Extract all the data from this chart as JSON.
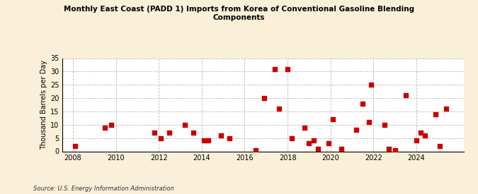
{
  "title": "Monthly East Coast (PADD 1) Imports from Korea of Conventional Gasoline Blending\nComponents",
  "ylabel": "Thousand Barrels per Day",
  "source": "Source: U.S. Energy Information Administration",
  "background_color": "#faefd8",
  "plot_background_color": "#ffffff",
  "marker_color": "#cc0000",
  "marker_size": 16,
  "xlim": [
    2007.5,
    2026.2
  ],
  "ylim": [
    0,
    35
  ],
  "yticks": [
    0,
    5,
    10,
    15,
    20,
    25,
    30,
    35
  ],
  "xticks": [
    2008,
    2010,
    2012,
    2014,
    2016,
    2018,
    2020,
    2022,
    2024
  ],
  "data_x": [
    2008.1,
    2009.5,
    2009.8,
    2011.8,
    2012.1,
    2012.5,
    2013.2,
    2013.6,
    2014.1,
    2014.3,
    2014.9,
    2015.3,
    2016.5,
    2016.9,
    2017.4,
    2017.6,
    2018.0,
    2018.2,
    2018.8,
    2019.0,
    2019.2,
    2019.4,
    2019.9,
    2020.1,
    2020.5,
    2021.2,
    2021.5,
    2021.8,
    2021.9,
    2022.5,
    2022.7,
    2023.0,
    2023.5,
    2024.0,
    2024.2,
    2024.4,
    2024.9,
    2025.1,
    2025.4
  ],
  "data_y": [
    2,
    9,
    10,
    7,
    5,
    7,
    10,
    7,
    4,
    4,
    6,
    5,
    0.5,
    20,
    31,
    16,
    31,
    5,
    9,
    3,
    4,
    1,
    3,
    12,
    1,
    8,
    18,
    11,
    25,
    10,
    1,
    0.5,
    21,
    4,
    7,
    6,
    14,
    2,
    16
  ]
}
